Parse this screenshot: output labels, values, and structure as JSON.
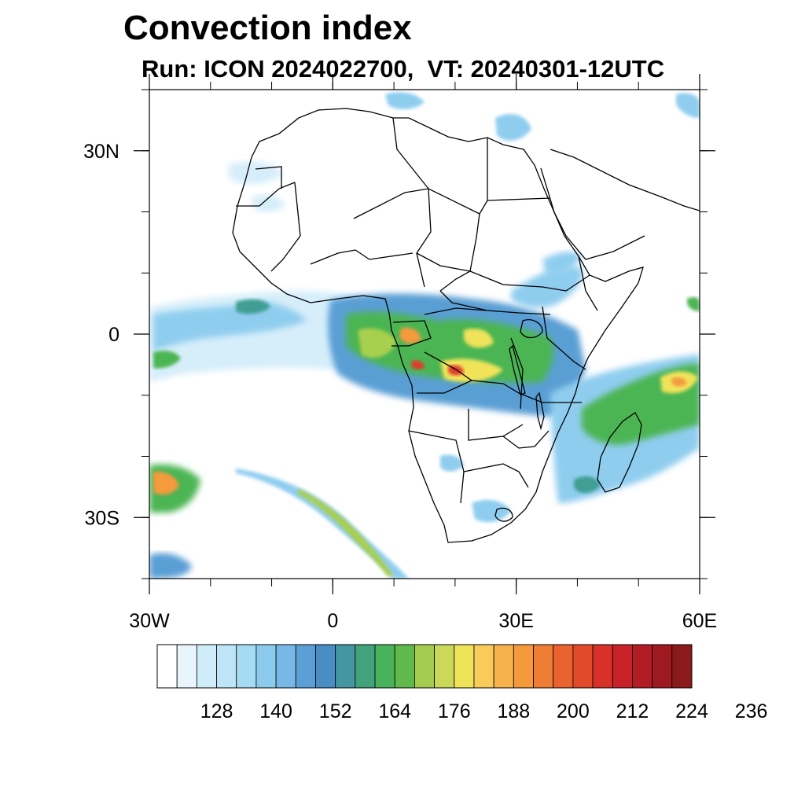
{
  "header": {
    "title": "Convection index",
    "subtitle": "Run: ICON 2024022700,  VT: 20240301-12UTC"
  },
  "map": {
    "lon_range": [
      -30,
      60
    ],
    "lat_range": [
      -40,
      40
    ],
    "lat_ticks": [
      {
        "value": 30,
        "label": "30N"
      },
      {
        "value": 0,
        "label": "0"
      },
      {
        "value": -30,
        "label": "30S"
      }
    ],
    "lon_ticks": [
      {
        "value": -30,
        "label": "30W"
      },
      {
        "value": 0,
        "label": "0"
      },
      {
        "value": 30,
        "label": "30E"
      },
      {
        "value": 60,
        "label": "60E"
      }
    ],
    "minor_lat_step": 10,
    "minor_lon_step": 10,
    "field_colors": {
      "ocean": "#ffffff",
      "low": "#d6eefa",
      "light_blue": "#8fcdef",
      "blue": "#5a9fd4",
      "teal": "#3f9e93",
      "green": "#4cb552",
      "lime": "#a8cf4e",
      "yellow": "#f0e35a",
      "orange": "#f59a3c",
      "red": "#e03a2b"
    }
  },
  "colorbar": {
    "colors": [
      "#ffffff",
      "#e9f5fc",
      "#d1ecf9",
      "#bde4f7",
      "#a6dbf4",
      "#8ccbee",
      "#77b8e6",
      "#5c9fd6",
      "#4a8cc4",
      "#4596a3",
      "#42a27d",
      "#49b25c",
      "#5fba4b",
      "#a5cc4f",
      "#cbd85a",
      "#efe35a",
      "#f9cb5a",
      "#f7b24c",
      "#f59a3c",
      "#f07d34",
      "#ea622e",
      "#e14a2b",
      "#d83129",
      "#c82228",
      "#b31c24",
      "#9f1a20",
      "#8b1a1c"
    ],
    "tick_labels": [
      "128",
      "140",
      "152",
      "164",
      "176",
      "188",
      "200",
      "212",
      "224",
      "236"
    ]
  }
}
